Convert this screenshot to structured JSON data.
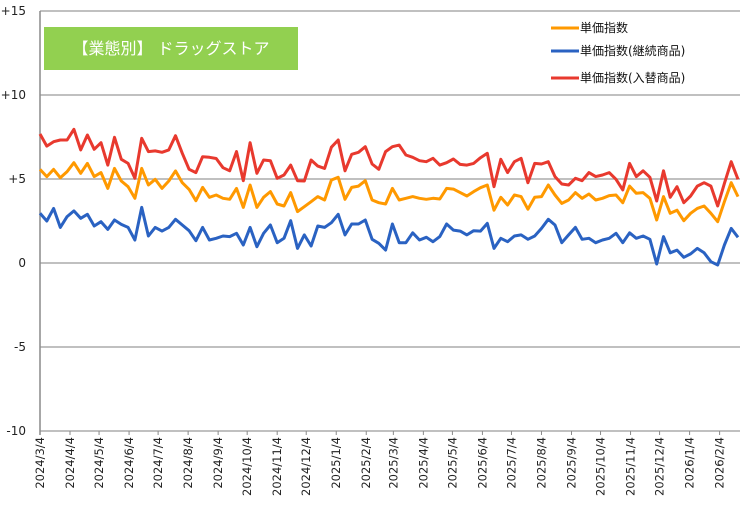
{
  "chart_data": {
    "type": "line",
    "title": "【業態別】 ドラッグストア",
    "title_box_color": "#92d050",
    "xlabel": "",
    "ylabel": "",
    "ylim": [
      -10,
      15
    ],
    "y_ticks": [
      15,
      10,
      5,
      0,
      -5,
      -10
    ],
    "y_tick_labels": [
      "+15",
      "+10",
      "+5",
      "0",
      "-5",
      "-10"
    ],
    "grid": true,
    "legend_position": "top-right",
    "x_tick_labels": [
      "2024/3/4",
      "2024/4/4",
      "2024/5/4",
      "2024/6/4",
      "2024/7/4",
      "2024/8/4",
      "2024/9/4",
      "2024/10/4",
      "2024/11/4",
      "2024/12/4",
      "2025/1/4",
      "2025/2/4",
      "2025/3/4",
      "2025/4/4",
      "2025/5/4",
      "2025/6/4",
      "2025/7/4",
      "2025/8/4",
      "2025/9/4",
      "2025/10/4",
      "2025/11/4",
      "2025/12/4",
      "2026/1/4",
      "2026/2/4"
    ],
    "x": [
      "2024/3/4",
      "2024/3/11",
      "2024/3/18",
      "2024/3/25",
      "2024/4/1",
      "2024/4/8",
      "2024/4/15",
      "2024/4/22",
      "2024/4/29",
      "2024/5/6",
      "2024/5/13",
      "2024/5/20",
      "2024/5/27",
      "2024/6/3",
      "2024/6/10",
      "2024/6/17",
      "2024/6/24",
      "2024/7/1",
      "2024/7/8",
      "2024/7/15",
      "2024/7/22",
      "2024/7/29",
      "2024/8/5",
      "2024/8/12",
      "2024/8/19",
      "2024/8/26",
      "2024/9/2",
      "2024/9/9",
      "2024/9/16",
      "2024/9/23",
      "2024/9/30",
      "2024/10/7",
      "2024/10/14",
      "2024/10/21",
      "2024/10/28",
      "2024/11/4",
      "2024/11/11",
      "2024/11/18",
      "2024/11/25",
      "2024/12/2",
      "2024/12/9",
      "2024/12/16",
      "2024/12/23",
      "2024/12/30",
      "2025/1/6",
      "2025/1/13",
      "2025/1/20",
      "2025/1/27",
      "2025/2/3",
      "2025/2/10",
      "2025/2/17",
      "2025/2/24",
      "2025/3/3",
      "2025/3/10",
      "2025/3/17",
      "2025/3/24",
      "2025/3/31",
      "2025/4/7",
      "2025/4/14",
      "2025/4/21",
      "2025/4/28",
      "2025/5/5",
      "2025/5/12",
      "2025/5/19",
      "2025/5/26",
      "2025/6/2",
      "2025/6/9",
      "2025/6/16",
      "2025/6/23",
      "2025/6/30",
      "2025/7/7",
      "2025/7/14",
      "2025/7/21",
      "2025/7/28",
      "2025/8/4",
      "2025/8/11",
      "2025/8/18",
      "2025/8/25",
      "2025/9/1",
      "2025/9/8",
      "2025/9/15",
      "2025/9/22",
      "2025/9/29",
      "2025/10/6",
      "2025/10/13",
      "2025/10/20",
      "2025/10/27",
      "2025/11/3",
      "2025/11/10",
      "2025/11/17",
      "2025/11/24",
      "2025/12/1",
      "2025/12/8",
      "2025/12/15",
      "2025/12/22",
      "2025/12/29",
      "2026/1/5",
      "2026/1/12",
      "2026/1/19",
      "2026/1/26",
      "2026/2/2",
      "2026/2/9",
      "2026/2/16",
      "2026/2/23"
    ],
    "series": [
      {
        "name": "単価指数",
        "color": "#ff9900",
        "values": [
          5.57,
          5.14,
          5.57,
          5.08,
          5.44,
          5.97,
          5.34,
          5.93,
          5.14,
          5.38,
          4.44,
          5.63,
          4.88,
          4.54,
          3.85,
          5.63,
          4.64,
          4.98,
          4.44,
          4.88,
          5.48,
          4.78,
          4.38,
          3.71,
          4.5,
          3.91,
          4.05,
          3.85,
          3.79,
          4.44,
          3.31,
          4.64,
          3.31,
          3.91,
          4.25,
          3.51,
          3.39,
          4.19,
          3.06,
          3.35,
          3.65,
          3.95,
          3.75,
          4.94,
          5.1,
          3.79,
          4.5,
          4.58,
          4.9,
          3.75,
          3.59,
          3.51,
          4.44,
          3.75,
          3.85,
          3.95,
          3.85,
          3.79,
          3.85,
          3.81,
          4.44,
          4.4,
          4.19,
          3.99,
          4.25,
          4.48,
          4.64,
          3.14,
          3.91,
          3.45,
          4.05,
          3.95,
          3.2,
          3.91,
          3.95,
          4.64,
          4.05,
          3.55,
          3.75,
          4.19,
          3.85,
          4.11,
          3.75,
          3.85,
          4.01,
          4.05,
          3.59,
          4.58,
          4.15,
          4.19,
          3.85,
          2.56,
          3.95,
          2.96,
          3.14,
          2.52,
          2.96,
          3.25,
          3.39,
          2.96,
          2.46,
          3.65,
          4.78,
          3.95
        ]
      },
      {
        "name": "単価指数(継続商品)",
        "color": "#2a62c2",
        "values": [
          2.96,
          2.5,
          3.25,
          2.12,
          2.76,
          3.1,
          2.66,
          2.9,
          2.2,
          2.46,
          2.0,
          2.56,
          2.3,
          2.12,
          1.37,
          3.31,
          1.61,
          2.12,
          1.9,
          2.12,
          2.6,
          2.26,
          1.92,
          1.33,
          2.12,
          1.37,
          1.47,
          1.61,
          1.57,
          1.77,
          1.07,
          2.12,
          0.97,
          1.77,
          2.26,
          1.21,
          1.47,
          2.52,
          0.87,
          1.67,
          1.01,
          2.2,
          2.12,
          2.4,
          2.9,
          1.67,
          2.32,
          2.32,
          2.56,
          1.41,
          1.17,
          0.77,
          2.32,
          1.21,
          1.21,
          1.8,
          1.37,
          1.53,
          1.27,
          1.57,
          2.32,
          1.96,
          1.9,
          1.67,
          1.92,
          1.9,
          2.36,
          0.87,
          1.47,
          1.27,
          1.61,
          1.67,
          1.41,
          1.61,
          2.06,
          2.6,
          2.26,
          1.21,
          1.67,
          2.12,
          1.41,
          1.47,
          1.21,
          1.37,
          1.47,
          1.77,
          1.21,
          1.8,
          1.47,
          1.61,
          1.41,
          -0.06,
          1.57,
          0.61,
          0.77,
          0.34,
          0.54,
          0.87,
          0.61,
          0.08,
          -0.12,
          1.07,
          2.06,
          1.53
        ]
      },
      {
        "name": "単価指数(入替商品)",
        "color": "#e8392e",
        "values": [
          7.68,
          6.96,
          7.22,
          7.32,
          7.32,
          7.96,
          6.73,
          7.62,
          6.77,
          7.16,
          5.83,
          7.48,
          6.17,
          5.93,
          5.04,
          7.42,
          6.63,
          6.67,
          6.59,
          6.73,
          7.58,
          6.53,
          5.58,
          5.38,
          6.33,
          6.29,
          6.22,
          5.67,
          5.49,
          6.63,
          4.9,
          7.16,
          5.34,
          6.13,
          6.09,
          5.04,
          5.24,
          5.83,
          4.9,
          4.88,
          6.13,
          5.77,
          5.63,
          6.89,
          7.32,
          5.49,
          6.47,
          6.59,
          6.92,
          5.89,
          5.58,
          6.63,
          6.92,
          7.02,
          6.43,
          6.29,
          6.09,
          6.03,
          6.23,
          5.83,
          5.97,
          6.19,
          5.87,
          5.83,
          5.93,
          6.27,
          6.53,
          4.54,
          6.17,
          5.38,
          6.03,
          6.23,
          4.78,
          5.93,
          5.89,
          6.03,
          5.14,
          4.7,
          4.64,
          5.04,
          4.9,
          5.38,
          5.14,
          5.24,
          5.38,
          4.98,
          4.35,
          5.93,
          5.14,
          5.49,
          5.1,
          3.69,
          5.49,
          3.91,
          4.54,
          3.59,
          3.99,
          4.58,
          4.78,
          4.58,
          3.39,
          4.74,
          6.03,
          4.98
        ]
      }
    ]
  }
}
